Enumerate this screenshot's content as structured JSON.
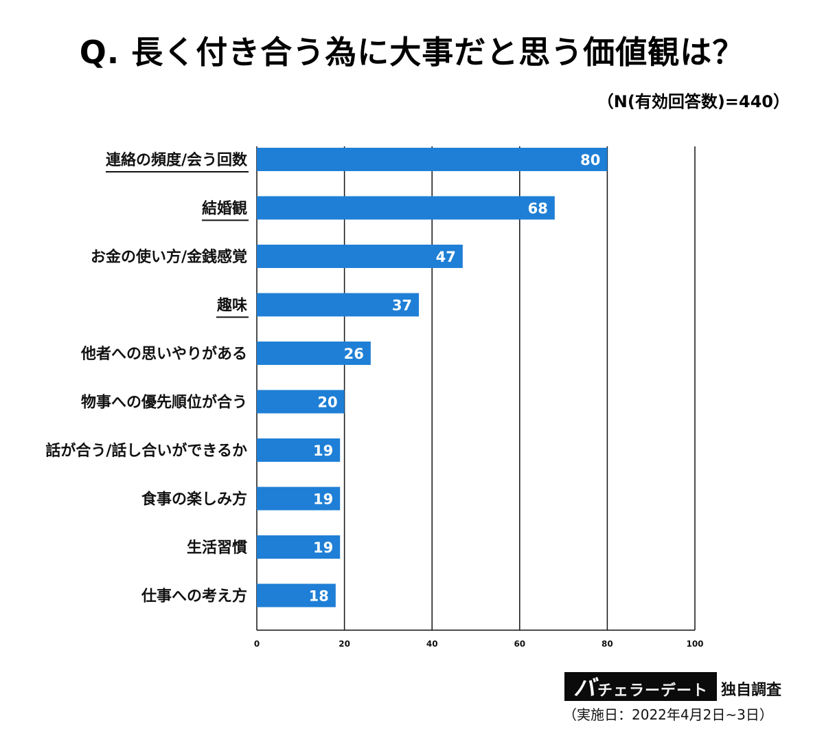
{
  "header": {
    "title": "Q. 長く付き合う為に大事だと思う価値観は？",
    "sample_size": "（N(有効回答数)=440）"
  },
  "chart_data": {
    "type": "bar",
    "orientation": "horizontal",
    "title": "Q. 長く付き合う為に大事だと思う価値観は？",
    "categories": [
      "連絡の頻度/会う回数",
      "結婚観",
      "お金の使い方/金銭感覚",
      "趣味",
      "他者への思いやりがある",
      "物事への優先順位が合う",
      "話が合う/話し合いができるか",
      "食事の楽しみ方",
      "生活習慣",
      "仕事への考え方"
    ],
    "values": [
      80,
      68,
      47,
      37,
      26,
      20,
      19,
      19,
      19,
      18
    ],
    "underlined_categories": [
      "連絡の頻度/会う回数",
      "結婚観",
      "趣味"
    ],
    "xlim": [
      0,
      100
    ],
    "xticks": [
      0,
      20,
      40,
      60,
      80,
      100
    ],
    "grid": true,
    "colors": {
      "bar": "#1f7fd6",
      "value_label": "#ffffff",
      "gridline": "#111111"
    }
  },
  "footer": {
    "brand_big": "バ",
    "brand_rest": "チェラーデート",
    "brand_note": "独自調査",
    "survey_date": "（実施日：2022年4月2日~3日）"
  }
}
